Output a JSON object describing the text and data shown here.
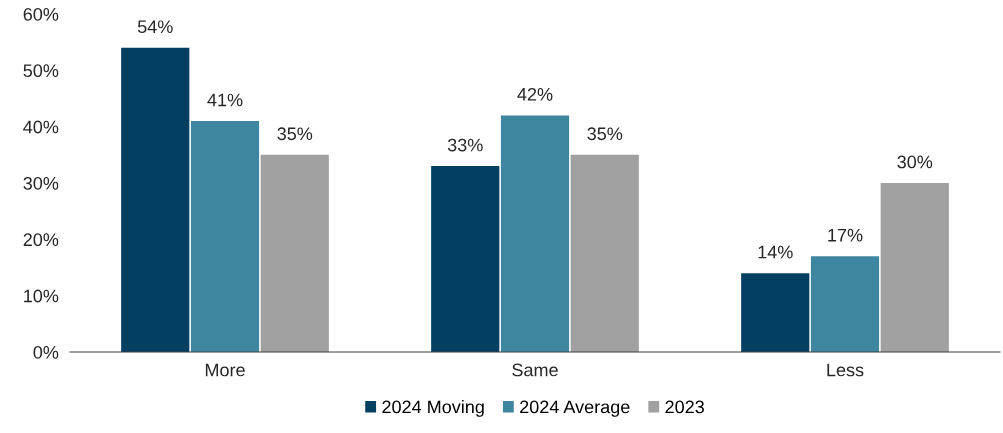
{
  "chart_data": {
    "type": "bar",
    "categories": [
      "More",
      "Same",
      "Less"
    ],
    "series": [
      {
        "name": "2024 Moving",
        "color": "#023f61",
        "values": [
          54,
          33,
          14
        ],
        "value_labels": [
          "54%",
          "33%",
          "14%"
        ]
      },
      {
        "name": "2024 Average",
        "color": "#3e869f",
        "values": [
          41,
          42,
          17
        ],
        "value_labels": [
          "41%",
          "42%",
          "17%"
        ]
      },
      {
        "name": "2023",
        "color": "#a0a0a0",
        "values": [
          35,
          35,
          30
        ],
        "value_labels": [
          "35%",
          "35%",
          "30%"
        ]
      }
    ],
    "ylim": [
      0,
      60
    ],
    "yticks": [
      {
        "value": 0,
        "label": "0%"
      },
      {
        "value": 10,
        "label": "10%"
      },
      {
        "value": 20,
        "label": "20%"
      },
      {
        "value": 30,
        "label": "30%"
      },
      {
        "value": 40,
        "label": "40%"
      },
      {
        "value": 50,
        "label": "50%"
      },
      {
        "value": 60,
        "label": "60%"
      }
    ],
    "grid": false,
    "legend": "bottom"
  }
}
